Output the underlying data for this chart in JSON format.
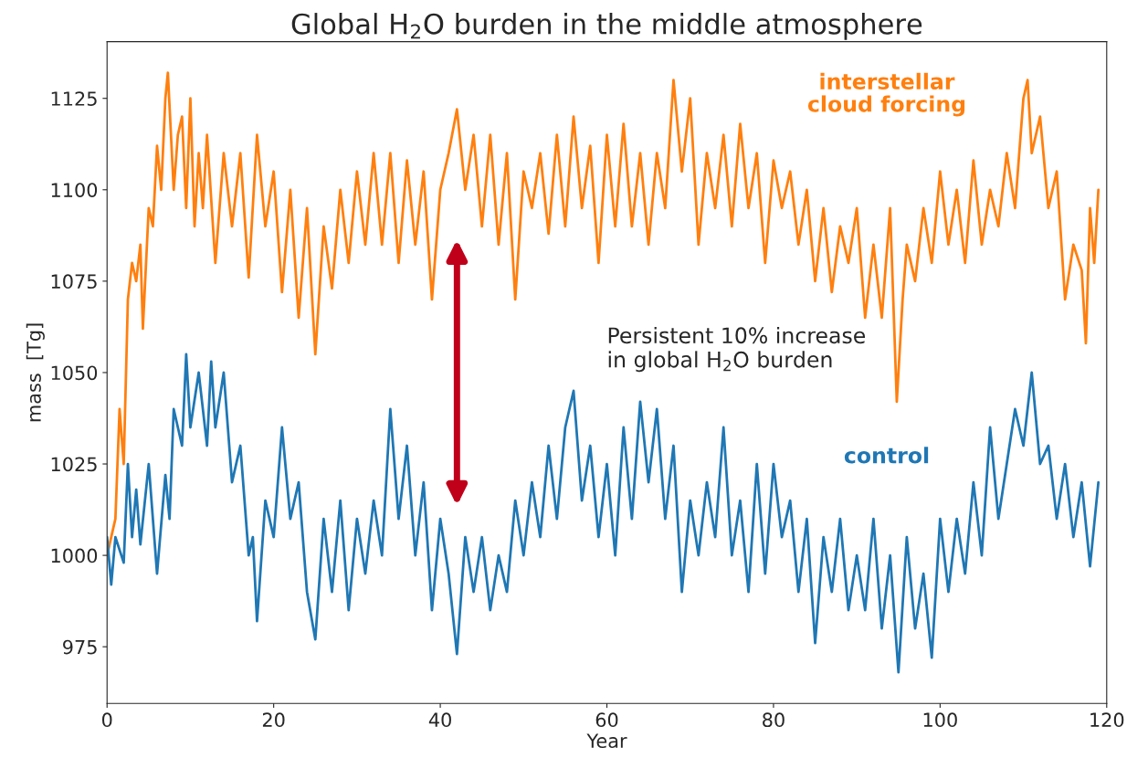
{
  "chart_data": {
    "type": "line",
    "title": "Global H$_{2}$O burden in the middle atmosphere",
    "xlabel": "Year",
    "ylabel": "mass  [Tg]",
    "xlim": [
      0,
      120
    ],
    "xticks": [
      0,
      20,
      40,
      60,
      80,
      100,
      120
    ],
    "ylim": [
      959.5,
      1140.5
    ],
    "yticks": [
      975,
      1000,
      1025,
      1050,
      1075,
      1100,
      1125
    ],
    "grid": false,
    "legend": false,
    "marker": "none",
    "line_style": "solid",
    "annotations": [
      "Persistent 10% increase\nin global H$_{2}$O burden"
    ],
    "series": [
      {
        "name": "interstellar\ncloud forcing",
        "color": "#ff7f0e",
        "x": [
          0,
          1,
          1.5,
          2,
          2.5,
          3,
          3.5,
          4,
          4.3,
          5,
          5.5,
          6,
          6.5,
          7,
          7.3,
          8,
          8.5,
          9,
          9.5,
          10,
          10.5,
          11,
          11.5,
          12,
          13,
          14,
          15,
          16,
          17,
          18,
          19,
          20,
          21,
          22,
          23,
          24,
          25,
          26,
          27,
          28,
          29,
          30,
          31,
          32,
          33,
          34,
          35,
          36,
          37,
          38,
          39,
          40,
          41,
          42,
          43,
          44,
          45,
          46,
          47,
          48,
          49,
          50,
          51,
          52,
          53,
          54,
          55,
          56,
          57,
          58,
          59,
          60,
          61,
          62,
          63,
          64,
          65,
          66,
          67,
          68,
          69,
          70,
          71,
          72,
          73,
          74,
          75,
          76,
          77,
          78,
          79,
          80,
          81,
          82,
          83,
          84,
          85,
          86,
          87,
          88,
          89,
          90,
          91,
          92,
          93,
          94,
          94.8,
          95.5,
          96,
          97,
          98,
          99,
          100,
          101,
          102,
          103,
          104,
          105,
          106,
          107,
          108,
          109,
          110,
          110.5,
          111,
          112,
          113,
          114,
          115,
          116,
          117,
          117.5,
          118,
          118.5,
          119
        ],
        "values": [
          1000,
          1010,
          1040,
          1025,
          1070,
          1080,
          1075,
          1085,
          1062,
          1095,
          1090,
          1112,
          1100,
          1125,
          1132,
          1100,
          1115,
          1120,
          1095,
          1125,
          1090,
          1110,
          1095,
          1115,
          1080,
          1110,
          1090,
          1110,
          1076,
          1115,
          1090,
          1105,
          1072,
          1100,
          1065,
          1095,
          1055,
          1090,
          1073,
          1100,
          1080,
          1105,
          1085,
          1110,
          1085,
          1110,
          1080,
          1108,
          1085,
          1105,
          1070,
          1100,
          1110,
          1122,
          1100,
          1115,
          1090,
          1115,
          1085,
          1110,
          1070,
          1105,
          1095,
          1110,
          1088,
          1115,
          1090,
          1120,
          1095,
          1112,
          1080,
          1115,
          1090,
          1118,
          1090,
          1110,
          1085,
          1110,
          1095,
          1130,
          1105,
          1125,
          1085,
          1110,
          1095,
          1115,
          1090,
          1118,
          1095,
          1110,
          1080,
          1108,
          1095,
          1105,
          1085,
          1100,
          1075,
          1095,
          1072,
          1090,
          1080,
          1095,
          1065,
          1085,
          1065,
          1095,
          1042,
          1070,
          1085,
          1075,
          1095,
          1080,
          1105,
          1085,
          1100,
          1080,
          1108,
          1085,
          1100,
          1090,
          1110,
          1095,
          1125,
          1130,
          1110,
          1120,
          1095,
          1105,
          1070,
          1085,
          1078,
          1058,
          1095,
          1080,
          1100
        ]
      },
      {
        "name": "control",
        "color": "#1f77b4",
        "x": [
          0,
          0.5,
          1,
          2,
          2.5,
          3,
          3.5,
          4,
          5,
          6,
          7,
          7.5,
          8,
          9,
          9.5,
          10,
          11,
          12,
          12.5,
          13,
          14,
          15,
          16,
          17,
          17.5,
          18,
          19,
          20,
          21,
          22,
          23,
          24,
          25,
          26,
          27,
          28,
          29,
          30,
          31,
          32,
          33,
          34,
          35,
          36,
          37,
          38,
          39,
          40,
          41,
          42,
          43,
          44,
          45,
          46,
          47,
          48,
          49,
          50,
          51,
          52,
          53,
          54,
          55,
          56,
          57,
          58,
          59,
          60,
          61,
          62,
          63,
          64,
          65,
          66,
          67,
          68,
          69,
          70,
          71,
          72,
          73,
          74,
          75,
          76,
          77,
          78,
          79,
          80,
          81,
          82,
          83,
          84,
          85,
          86,
          87,
          88,
          89,
          90,
          91,
          92,
          93,
          94,
          95,
          96,
          97,
          98,
          99,
          100,
          101,
          102,
          103,
          104,
          105,
          106,
          107,
          108,
          109,
          110,
          111,
          112,
          113,
          114,
          115,
          116,
          117,
          118,
          119
        ],
        "values": [
          1005,
          992,
          1005,
          998,
          1025,
          1005,
          1018,
          1003,
          1025,
          995,
          1022,
          1010,
          1040,
          1030,
          1055,
          1035,
          1050,
          1030,
          1053,
          1035,
          1050,
          1020,
          1030,
          1000,
          1005,
          982,
          1015,
          1005,
          1035,
          1010,
          1020,
          990,
          977,
          1010,
          990,
          1015,
          985,
          1010,
          995,
          1015,
          1000,
          1040,
          1010,
          1030,
          1000,
          1020,
          985,
          1010,
          995,
          973,
          1005,
          990,
          1005,
          985,
          1000,
          990,
          1015,
          1000,
          1020,
          1005,
          1030,
          1010,
          1035,
          1045,
          1015,
          1030,
          1005,
          1025,
          1000,
          1035,
          1010,
          1042,
          1020,
          1040,
          1010,
          1030,
          990,
          1015,
          1000,
          1020,
          1005,
          1035,
          1000,
          1015,
          990,
          1025,
          995,
          1025,
          1005,
          1015,
          990,
          1010,
          976,
          1005,
          990,
          1010,
          985,
          1000,
          985,
          1010,
          980,
          1000,
          968,
          1005,
          980,
          995,
          972,
          1010,
          990,
          1010,
          995,
          1020,
          1000,
          1035,
          1010,
          1025,
          1040,
          1030,
          1050,
          1025,
          1030,
          1010,
          1025,
          1005,
          1020,
          997,
          1020
        ]
      }
    ]
  }
}
